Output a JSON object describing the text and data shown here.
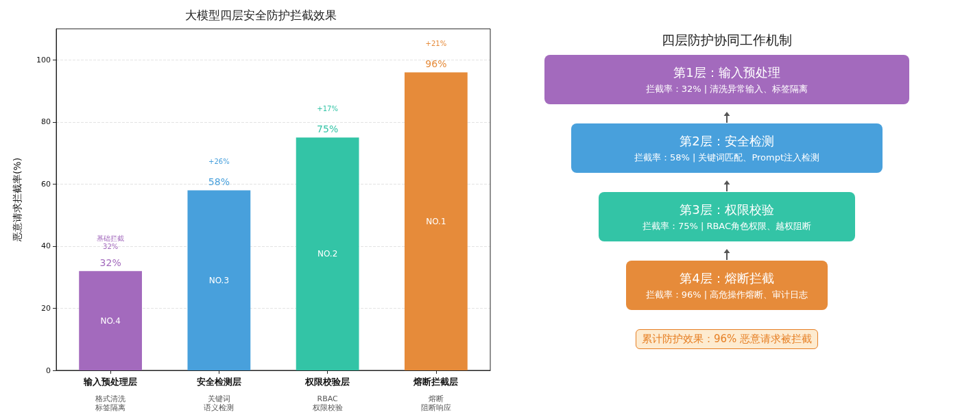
{
  "chart_data": [
    {
      "type": "bar",
      "title": "大模型四层安全防护拦截效果",
      "ylabel": "恶意请求拦截率(%)",
      "categories": [
        "输入预处理层",
        "安全检测层",
        "权限校验层",
        "熔断拦截层"
      ],
      "values": [
        32,
        58,
        75,
        96
      ],
      "colors": [
        "#a36abd",
        "#48a0dc",
        "#33c4a6",
        "#e68b3a"
      ],
      "value_labels": [
        "32%",
        "58%",
        "75%",
        "96%"
      ],
      "ylim": [
        0,
        110
      ],
      "yticks": [
        0,
        20,
        40,
        60,
        80,
        100
      ],
      "grid": "y",
      "annotations": [
        "基础拦截\n32%",
        "+26%",
        "+17%",
        "+21%",
        "NO.4",
        "NO.3",
        "NO.2",
        "NO.1",
        "格式清洗",
        "标签隔离",
        "关键词",
        "语义检测",
        "RBAC",
        "权限校验",
        "熔断",
        "阻断响应"
      ]
    },
    {
      "type": "other",
      "title": "四层防护协同工作机制",
      "colors": [
        "#a36abd",
        "#48a0dc",
        "#33c4a6",
        "#e68b3a",
        "#e67e22"
      ],
      "annotations": [
        "第1层：输入预处理",
        "拦截率：32% | 清洗异常输入、标签隔离",
        "第2层：安全检测",
        "拦截率：58% | 关键词匹配、Prompt注入检测",
        "第3层：权限校验",
        "拦截率：75% | RBAC角色权限、越权阻断",
        "第4层：熔断拦截",
        "拦截率：96% | 高危操作熔断、审计日志",
        "累计防护效果：96% 恶意请求被拦截"
      ]
    }
  ]
}
